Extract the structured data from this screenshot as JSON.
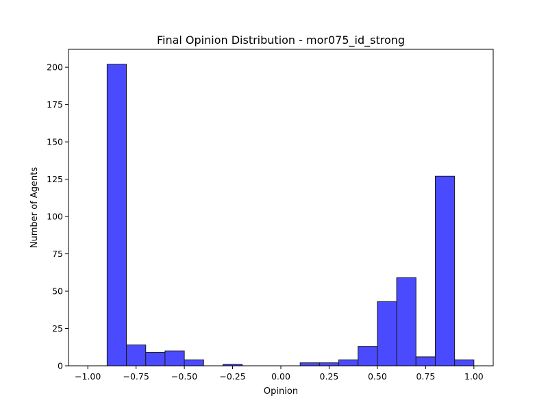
{
  "chart_data": {
    "type": "bar",
    "title": "Final Opinion Distribution - mor075_id_strong",
    "xlabel": "Opinion",
    "ylabel": "Number of Agents",
    "xlim": [
      -1.1,
      1.1
    ],
    "ylim": [
      0,
      212
    ],
    "xticks": [
      -1.0,
      -0.75,
      -0.5,
      -0.25,
      0.0,
      0.25,
      0.5,
      0.75,
      1.0
    ],
    "xtick_labels": [
      "−1.00",
      "−0.75",
      "−0.50",
      "−0.25",
      "0.00",
      "0.25",
      "0.50",
      "0.75",
      "1.00"
    ],
    "yticks": [
      0,
      25,
      50,
      75,
      100,
      125,
      150,
      175,
      200
    ],
    "ytick_labels": [
      "0",
      "25",
      "50",
      "75",
      "100",
      "125",
      "150",
      "175",
      "200"
    ],
    "grid": false,
    "bar_color": "#4a4aff",
    "edge_color": "#1a1a1a",
    "bins": [
      {
        "x0": -0.9,
        "x1": -0.8,
        "count": 202
      },
      {
        "x0": -0.8,
        "x1": -0.7,
        "count": 14
      },
      {
        "x0": -0.7,
        "x1": -0.6,
        "count": 9
      },
      {
        "x0": -0.6,
        "x1": -0.5,
        "count": 10
      },
      {
        "x0": -0.5,
        "x1": -0.4,
        "count": 4
      },
      {
        "x0": -0.3,
        "x1": -0.2,
        "count": 1
      },
      {
        "x0": 0.1,
        "x1": 0.2,
        "count": 2
      },
      {
        "x0": 0.2,
        "x1": 0.3,
        "count": 2
      },
      {
        "x0": 0.3,
        "x1": 0.4,
        "count": 4
      },
      {
        "x0": 0.4,
        "x1": 0.5,
        "count": 13
      },
      {
        "x0": 0.5,
        "x1": 0.6,
        "count": 43
      },
      {
        "x0": 0.6,
        "x1": 0.7,
        "count": 59
      },
      {
        "x0": 0.7,
        "x1": 0.8,
        "count": 6
      },
      {
        "x0": 0.8,
        "x1": 0.9,
        "count": 127
      },
      {
        "x0": 0.9,
        "x1": 1.0,
        "count": 4
      }
    ]
  }
}
